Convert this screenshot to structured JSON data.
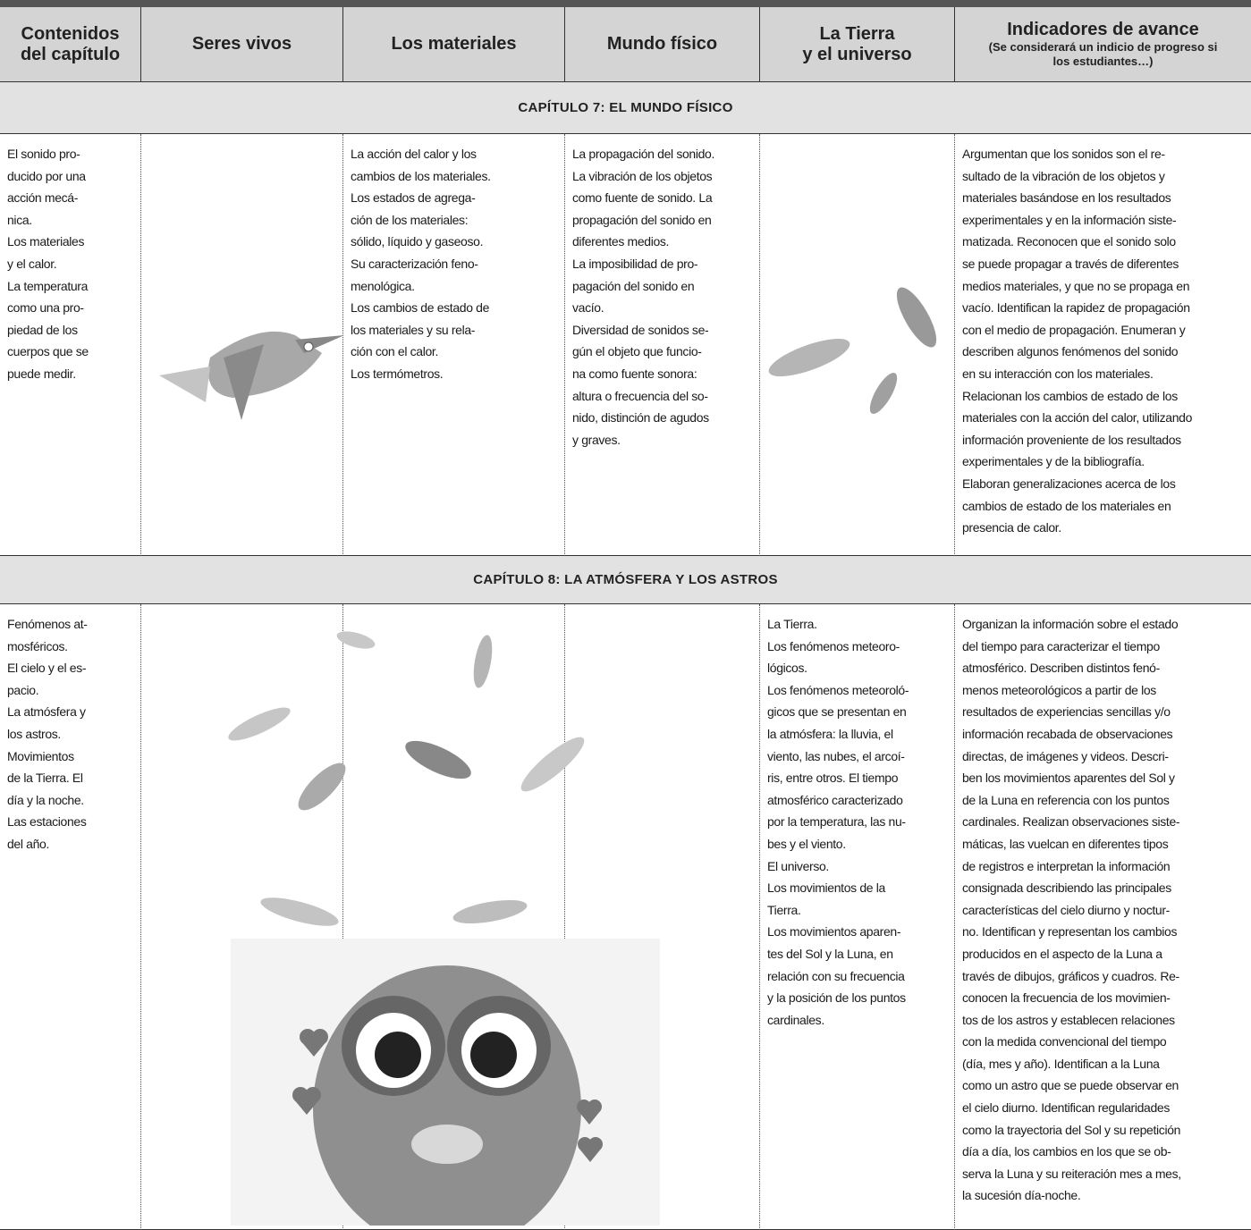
{
  "header": {
    "columns": [
      [
        "Contenidos",
        "del capítulo"
      ],
      [
        "Seres vivos"
      ],
      [
        "Los materiales"
      ],
      [
        "Mundo físico"
      ],
      [
        "La Tierra",
        "y el universo"
      ],
      [
        "Indicadores de avance"
      ]
    ],
    "indicator_note": [
      "(Se considerará un indicio de progreso si",
      "los estudiantes…)"
    ]
  },
  "chapters": [
    {
      "title": "CAPÍTULO 7: EL MUNDO FÍSICO",
      "contents": [
        "El sonido pro-",
        "ducido por una",
        "acción mecá-",
        "nica.",
        "Los materiales",
        "y el calor.",
        "La temperatura",
        "como una pro-",
        "piedad de los",
        "cuerpos que se",
        "puede medir."
      ],
      "materials": [
        "La acción del calor y los",
        "cambios de los materiales.",
        "Los estados de agrega-",
        "ción de los materiales:",
        "sólido, líquido y gaseoso.",
        "Su caracterización feno-",
        "menológica.",
        "Los cambios de estado de",
        "los materiales y su rela-",
        "ción con el calor.",
        "Los termómetros."
      ],
      "physical_world": [
        "La propagación del sonido.",
        "La vibración de los objetos",
        "como fuente de sonido. La",
        "propagación del sonido en",
        "diferentes medios.",
        "La imposibilidad de pro-",
        "pagación del sonido en",
        "vacío.",
        "Diversidad de sonidos se-",
        "gún el objeto que funcio-",
        "na como fuente sonora:",
        "altura o frecuencia del so-",
        "nido, distinción de agudos",
        "y graves."
      ],
      "indicators": [
        "Argumentan que los sonidos son el re-",
        "sultado de la vibración de los objetos y",
        "materiales basándose en los resultados",
        "experimentales y en la información siste-",
        "matizada. Reconocen que el sonido solo",
        "se puede propagar a través de diferentes",
        "medios materiales, y que no se propaga en",
        "vacío. Identifican la rapidez de propagación",
        "con el medio de propagación. Enumeran y",
        "describen algunos fenómenos del sonido",
        "en su interacción con los materiales.",
        "Relacionan los cambios de estado de los",
        "materiales con la acción del calor, utilizando",
        "información proveniente de los resultados",
        "experimentales y de la bibliografía.",
        "Elaboran generalizaciones acerca de los",
        "cambios de estado de los materiales en",
        "presencia de calor."
      ]
    },
    {
      "title": "CAPÍTULO 8: LA ATMÓSFERA Y LOS ASTROS",
      "contents": [
        "Fenómenos at-",
        "mosféricos.",
        "El cielo y el es-",
        "pacio.",
        "La atmósfera y",
        "los astros.",
        "Movimientos",
        "de la Tierra. El",
        "día y la noche.",
        "Las estaciones",
        "del año."
      ],
      "earth_universe": [
        "La Tierra.",
        "Los fenómenos meteoro-",
        "lógicos.",
        "Los fenómenos meteoroló-",
        "gicos que se presentan en",
        "la atmósfera: la lluvia, el",
        "viento, las nubes, el arcoí-",
        "ris, entre otros. El tiempo",
        "atmosférico caracterizado",
        "por la temperatura, las nu-",
        "bes y el viento.",
        "El universo.",
        "Los movimientos de la",
        "Tierra.",
        "Los movimientos aparen-",
        "tes del Sol y la Luna, en",
        "relación con su frecuencia",
        "y la posición de los puntos",
        "cardinales."
      ],
      "indicators": [
        "Organizan la información sobre el estado",
        "del tiempo para caracterizar el tiempo",
        "atmosférico. Describen distintos fenó-",
        "menos meteorológicos a partir de los",
        "resultados de experiencias sencillas y/o",
        "información recabada de observaciones",
        "directas, de imágenes y videos. Descri-",
        "ben los movimientos aparentes del Sol y",
        "de la Luna en referencia con los puntos",
        "cardinales. Realizan observaciones siste-",
        "máticas, las vuelcan en diferentes tipos",
        "de registros e interpretan la información",
        "consignada describiendo las principales",
        "características del cielo diurno y noctur-",
        "no. Identifican y representan los cambios",
        "producidos en el aspecto de la Luna a",
        "través de dibujos, gráficos y cuadros. Re-",
        "conocen la frecuencia de los movimien-",
        "tos de los astros y establecen relaciones",
        "con la medida convencional del tiempo",
        "(día, mes y año). Identifican a la Luna",
        "como un astro que se puede observar en",
        "el cielo diurno. Identifican regularidades",
        "como la trayectoria del Sol y su repetición",
        "día a día, los cambios en los que se ob-",
        "serva la Luna y su reiteración mes a mes,",
        "la sucesión día-noche."
      ]
    }
  ]
}
